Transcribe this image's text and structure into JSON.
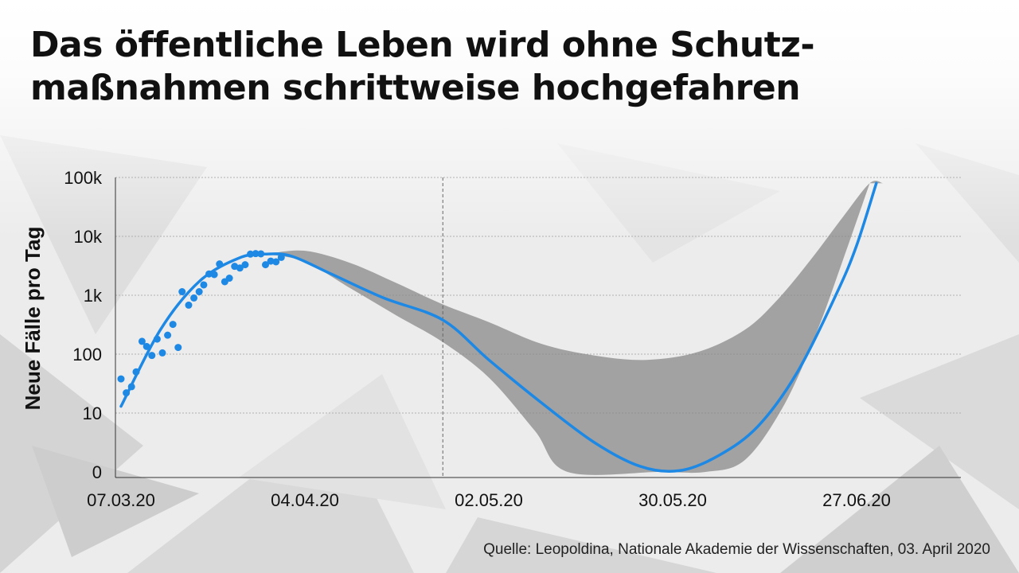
{
  "title_lines": [
    "Das öffentliche Leben wird ohne Schutz-",
    "maßnahmen schrittweise hochgefahren"
  ],
  "source": "Quelle: Leopoldina, Nationale Akademie der Wissenschaften, 03. April 2020",
  "chart_data": {
    "type": "scatter",
    "title": "Das öffentliche Leben wird ohne Schutzmaßnahmen schrittweise hochgefahren",
    "xlabel": "",
    "ylabel": "Neue Fälle pro Tag",
    "y_scale": "log",
    "y_ticks": [
      1,
      10,
      100,
      1000,
      10000,
      100000
    ],
    "y_tick_labels": [
      "0",
      "10",
      "100",
      "1k",
      "10k",
      "100k"
    ],
    "x_tick_labels": [
      "07.03.20",
      "04.04.20",
      "02.05.20",
      "30.05.20",
      "27.06.20"
    ],
    "x_tick_days": [
      0,
      28,
      56,
      84,
      112
    ],
    "x_range_days": [
      0,
      133
    ],
    "reference_line_day": 49,
    "grid": true,
    "colors": {
      "data": "#1e88e5",
      "model": "#1e88e5",
      "band": "#8a8a8a",
      "grid": "#b0b0b0"
    },
    "series": [
      {
        "values": [
          [
            0,
            38
          ],
          [
            0.8,
            22
          ],
          [
            1.6,
            28
          ],
          [
            2.3,
            50
          ],
          [
            3.2,
            165
          ],
          [
            3.9,
            135
          ],
          [
            4.7,
            95
          ],
          [
            5.5,
            180
          ],
          [
            6.3,
            105
          ],
          [
            7.1,
            210
          ],
          [
            7.9,
            320
          ],
          [
            8.7,
            130
          ],
          [
            9.3,
            1150
          ],
          [
            10.3,
            680
          ],
          [
            11.1,
            900
          ],
          [
            11.9,
            1150
          ],
          [
            12.6,
            1500
          ],
          [
            13.4,
            2300
          ],
          [
            14.2,
            2250
          ],
          [
            15.0,
            3400
          ],
          [
            15.8,
            1700
          ],
          [
            16.5,
            1950
          ],
          [
            17.3,
            3100
          ],
          [
            18.1,
            2900
          ],
          [
            18.9,
            3300
          ],
          [
            19.7,
            5000
          ],
          [
            20.5,
            5100
          ],
          [
            21.3,
            5050
          ],
          [
            22.0,
            3300
          ],
          [
            22.8,
            3800
          ],
          [
            23.6,
            3700
          ],
          [
            24.4,
            4400
          ]
        ]
      },
      {
        "values": [
          [
            0,
            13
          ],
          [
            6,
            260
          ],
          [
            12,
            1750
          ],
          [
            18,
            4300
          ],
          [
            22,
            5000
          ],
          [
            26,
            4600
          ],
          [
            32,
            2300
          ],
          [
            40,
            900
          ],
          [
            49,
            380
          ],
          [
            56,
            80
          ],
          [
            64,
            15
          ],
          [
            72,
            3.2
          ],
          [
            79,
            1.25
          ],
          [
            85,
            1.05
          ],
          [
            91,
            1.9
          ],
          [
            97,
            6
          ],
          [
            103,
            50
          ],
          [
            109,
            1100
          ],
          [
            112,
            7000
          ],
          [
            115,
            80000
          ]
        ]
      }
    ],
    "band_upper": [
      [
        22,
        5000
      ],
      [
        28,
        5700
      ],
      [
        35,
        3500
      ],
      [
        42,
        1600
      ],
      [
        49,
        700
      ],
      [
        56,
        350
      ],
      [
        64,
        150
      ],
      [
        72,
        95
      ],
      [
        80,
        80
      ],
      [
        88,
        110
      ],
      [
        95,
        260
      ],
      [
        100,
        850
      ],
      [
        105,
        4000
      ],
      [
        110,
        22000
      ],
      [
        114,
        80000
      ],
      [
        116,
        80000
      ]
    ],
    "band_lower": [
      [
        22,
        5000
      ],
      [
        28,
        3700
      ],
      [
        35,
        1300
      ],
      [
        42,
        450
      ],
      [
        49,
        160
      ],
      [
        56,
        40
      ],
      [
        63,
        5
      ],
      [
        68,
        0.85
      ],
      [
        82,
        0.85
      ],
      [
        89,
        0.85
      ],
      [
        95,
        1.6
      ],
      [
        101,
        14
      ],
      [
        106,
        250
      ],
      [
        110,
        4200
      ],
      [
        114,
        80000
      ]
    ]
  }
}
